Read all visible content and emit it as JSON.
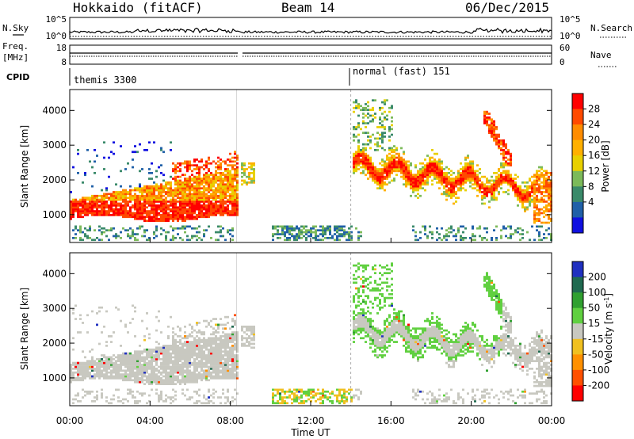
{
  "header": {
    "title": "Hokkaido (fitACF)",
    "beam": "Beam 14",
    "date": "06/Dec/2015"
  },
  "noise_panel": {
    "left_label": "N.Sky",
    "right_label": "N.Search",
    "left_ticks": [
      "10^5",
      "10^0"
    ],
    "right_ticks": [
      "10^5",
      "10^0"
    ]
  },
  "freq_panel": {
    "left_label_1": "Freq.",
    "left_label_2": "[MHz]",
    "right_label": "Nave",
    "left_ticks": [
      "18",
      "8"
    ],
    "right_ticks": [
      "60",
      "0"
    ]
  },
  "cpid_panel": {
    "label": "CPID",
    "segments": [
      {
        "name": "themis 3300",
        "start_hour": 0.0
      },
      {
        "name": "normal (fast) 151",
        "start_hour": 14.0
      }
    ]
  },
  "chart_data": [
    {
      "type": "heatmap",
      "name": "power",
      "xlabel": "",
      "ylabel": "Slant Range [km]",
      "x_range_hours": [
        0,
        24
      ],
      "ylim": [
        200,
        4600
      ],
      "y_ticks": [
        "1000",
        "2000",
        "3000",
        "4000"
      ],
      "colorbar": {
        "label": "Power [dB]",
        "ticks": [
          "28",
          "24",
          "20",
          "16",
          "12",
          "8",
          "4"
        ],
        "colors": [
          "#ff0000",
          "#ff4a00",
          "#ff8c00",
          "#ffb000",
          "#e8d000",
          "#7cba5a",
          "#3a8a6a",
          "#2060a8",
          "#1010e0"
        ]
      },
      "data_gap_hours": [
        8.3,
        8.5
      ],
      "regions": [
        {
          "label": "00-08 UT band",
          "x_hours": [
            0.0,
            8.3
          ],
          "y_km": [
            800,
            2500
          ]
        },
        {
          "label": "14-23 UT wave band",
          "x_hours": [
            14.0,
            24.0
          ],
          "y_km": [
            700,
            3300
          ]
        },
        {
          "label": "near range",
          "x_hours": [
            0.0,
            24.0
          ],
          "y_km": [
            300,
            650
          ]
        }
      ]
    },
    {
      "type": "heatmap",
      "name": "velocity",
      "xlabel": "Time UT",
      "ylabel": "Slant Range [km]",
      "x_range_hours": [
        0,
        24
      ],
      "x_ticks": [
        "00:00",
        "04:00",
        "08:00",
        "12:00",
        "16:00",
        "20:00",
        "00:00"
      ],
      "ylim": [
        200,
        4600
      ],
      "y_ticks": [
        "1000",
        "2000",
        "3000",
        "4000"
      ],
      "colorbar": {
        "label": "Velocity [m s",
        "label_exponent": "-1",
        "label_end": "]",
        "ticks": [
          "200",
          "100",
          "50",
          "15",
          "-15",
          "-50",
          "-100",
          "-200"
        ],
        "colors": [
          "#2030c0",
          "#206a50",
          "#30a030",
          "#60d040",
          "#c8c8c0",
          "#f0c020",
          "#ff9000",
          "#ff5000",
          "#ff0000"
        ]
      },
      "data_gap_hours": [
        8.3,
        8.5
      ]
    }
  ]
}
